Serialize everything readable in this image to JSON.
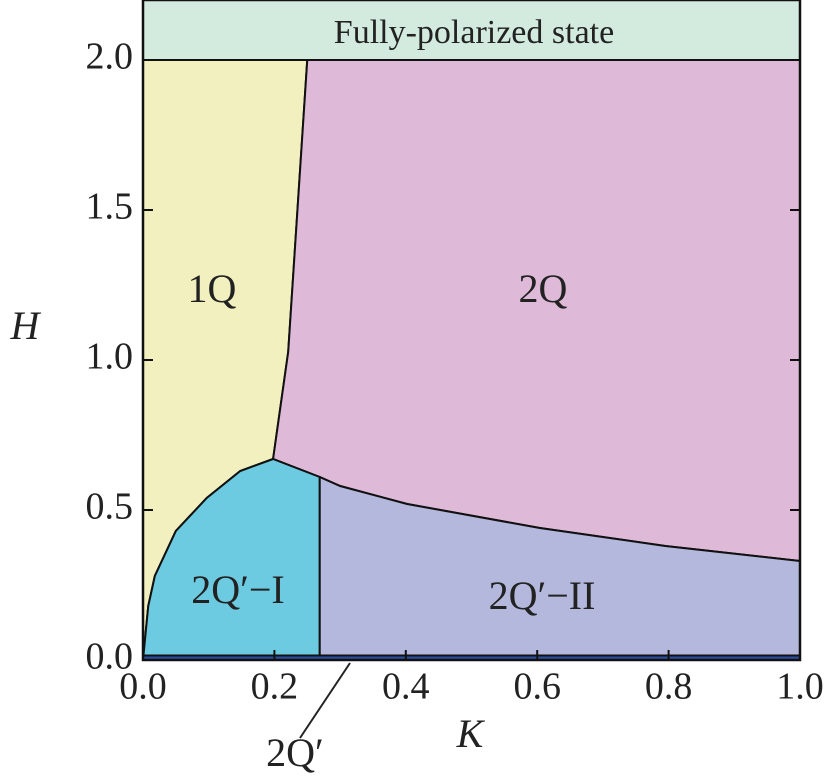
{
  "chart_data": {
    "type": "phase-diagram",
    "x_label": "K",
    "y_label": "H",
    "xlim": [
      0,
      1
    ],
    "ylim": [
      0,
      2.2
    ],
    "xticks": [
      {
        "value": 0,
        "label": "0.0"
      },
      {
        "value": 0.2,
        "label": "0.2"
      },
      {
        "value": 0.4,
        "label": "0.4"
      },
      {
        "value": 0.6,
        "label": "0.6"
      },
      {
        "value": 0.8,
        "label": "0.8"
      },
      {
        "value": 1,
        "label": "1.0"
      }
    ],
    "yticks": [
      {
        "value": 0,
        "label": "0.0"
      },
      {
        "value": 0.5,
        "label": "0.5"
      },
      {
        "value": 1,
        "label": "1.0"
      },
      {
        "value": 1.5,
        "label": "1.5"
      },
      {
        "value": 2,
        "label": "2.0"
      }
    ],
    "regions": [
      {
        "name": "1Q",
        "color": "#f3f0c0",
        "x": [
          0,
          0,
          0.25,
          0.221,
          0.198,
          0.148,
          0.097,
          0.05,
          0.018,
          0.008
        ],
        "y": [
          0,
          2,
          2,
          1.027,
          0.67,
          0.63,
          0.54,
          0.43,
          0.28,
          0.18
        ]
      },
      {
        "name": "2Q",
        "color": "#dfbad8",
        "x": [
          0.25,
          1,
          1,
          0.795,
          0.604,
          0.402,
          0.3,
          0.269,
          0.198,
          0.221
        ],
        "y": [
          2,
          2,
          0.33,
          0.38,
          0.44,
          0.52,
          0.58,
          0.61,
          0.67,
          1.027
        ]
      },
      {
        "name": "2Q′−I",
        "color": "#6ccbe0",
        "x": [
          0,
          0.008,
          0.018,
          0.05,
          0.097,
          0.148,
          0.198,
          0.269,
          0.269
        ],
        "y": [
          0,
          0.18,
          0.28,
          0.43,
          0.54,
          0.63,
          0.67,
          0.61,
          0
        ]
      },
      {
        "name": "2Q′−II",
        "color": "#b4b8dc",
        "x": [
          0.269,
          0.269,
          0.3,
          0.402,
          0.604,
          0.795,
          1,
          1
        ],
        "y": [
          0,
          0.61,
          0.58,
          0.52,
          0.44,
          0.38,
          0.33,
          0
        ]
      },
      {
        "name": "Fully-polarized state",
        "color": "#d3ebde",
        "x": [
          0,
          1,
          1,
          0
        ],
        "y": [
          2,
          2,
          2.2,
          2.2
        ]
      },
      {
        "name": "2Q′",
        "color": "#2b4fa0",
        "x": [
          0,
          1,
          1,
          0
        ],
        "y": [
          0,
          0,
          0.015,
          0.015
        ]
      }
    ]
  }
}
